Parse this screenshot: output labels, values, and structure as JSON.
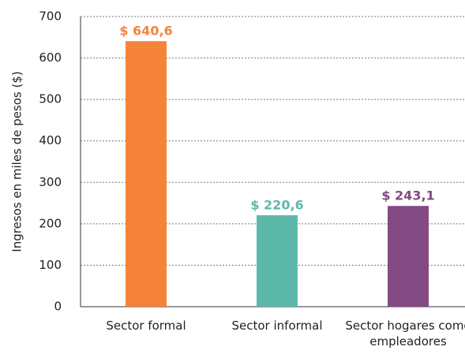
{
  "chart_data": {
    "type": "bar",
    "y_label": "Ingresos en miles de pesos ($)",
    "categories": [
      "Sector formal",
      "Sector informal",
      "Sector hogares como empleadores"
    ],
    "values": [
      640.6,
      220.6,
      243.1
    ],
    "value_labels": [
      "$ 640,6",
      "$ 220,6",
      "$ 243,1"
    ],
    "colors": [
      "#f5833a",
      "#5cb9a9",
      "#834a84"
    ],
    "ylim": [
      0,
      700
    ],
    "yticks": [
      0,
      100,
      200,
      300,
      400,
      500,
      600,
      700
    ],
    "grid": true
  }
}
